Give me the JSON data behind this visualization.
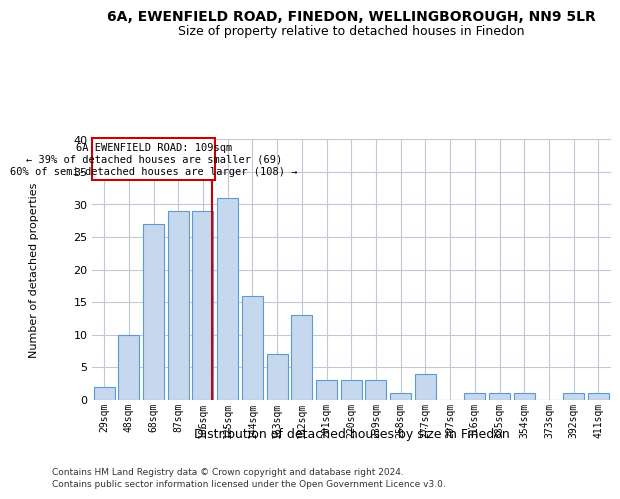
{
  "title1": "6A, EWENFIELD ROAD, FINEDON, WELLINGBOROUGH, NN9 5LR",
  "title2": "Size of property relative to detached houses in Finedon",
  "xlabel": "Distribution of detached houses by size in Finedon",
  "ylabel": "Number of detached properties",
  "footer1": "Contains HM Land Registry data © Crown copyright and database right 2024.",
  "footer2": "Contains public sector information licensed under the Open Government Licence v3.0.",
  "annotation_line1": "6A EWENFIELD ROAD: 109sqm",
  "annotation_line2": "← 39% of detached houses are smaller (69)",
  "annotation_line3": "60% of semi-detached houses are larger (108) →",
  "bar_color": "#c5d8ed",
  "bar_edge_color": "#5b9bd5",
  "red_line_color": "#cc0000",
  "annotation_box_color": "#cc0000",
  "background_color": "#ffffff",
  "grid_color": "#c0c8d8",
  "categories": [
    "29sqm",
    "48sqm",
    "68sqm",
    "87sqm",
    "106sqm",
    "125sqm",
    "144sqm",
    "163sqm",
    "182sqm",
    "201sqm",
    "220sqm",
    "239sqm",
    "258sqm",
    "277sqm",
    "297sqm",
    "316sqm",
    "335sqm",
    "354sqm",
    "373sqm",
    "392sqm",
    "411sqm"
  ],
  "values": [
    2,
    10,
    27,
    29,
    29,
    31,
    16,
    7,
    13,
    3,
    3,
    3,
    1,
    4,
    0,
    1,
    1,
    1,
    0,
    1,
    1
  ],
  "ylim": [
    0,
    40
  ],
  "yticks": [
    0,
    5,
    10,
    15,
    20,
    25,
    30,
    35,
    40
  ],
  "red_line_bar_index": 4,
  "title1_fontsize": 10,
  "title2_fontsize": 9,
  "ylabel_fontsize": 8,
  "xlabel_fontsize": 9,
  "tick_fontsize": 7,
  "ytick_fontsize": 8,
  "footer_fontsize": 6.5
}
